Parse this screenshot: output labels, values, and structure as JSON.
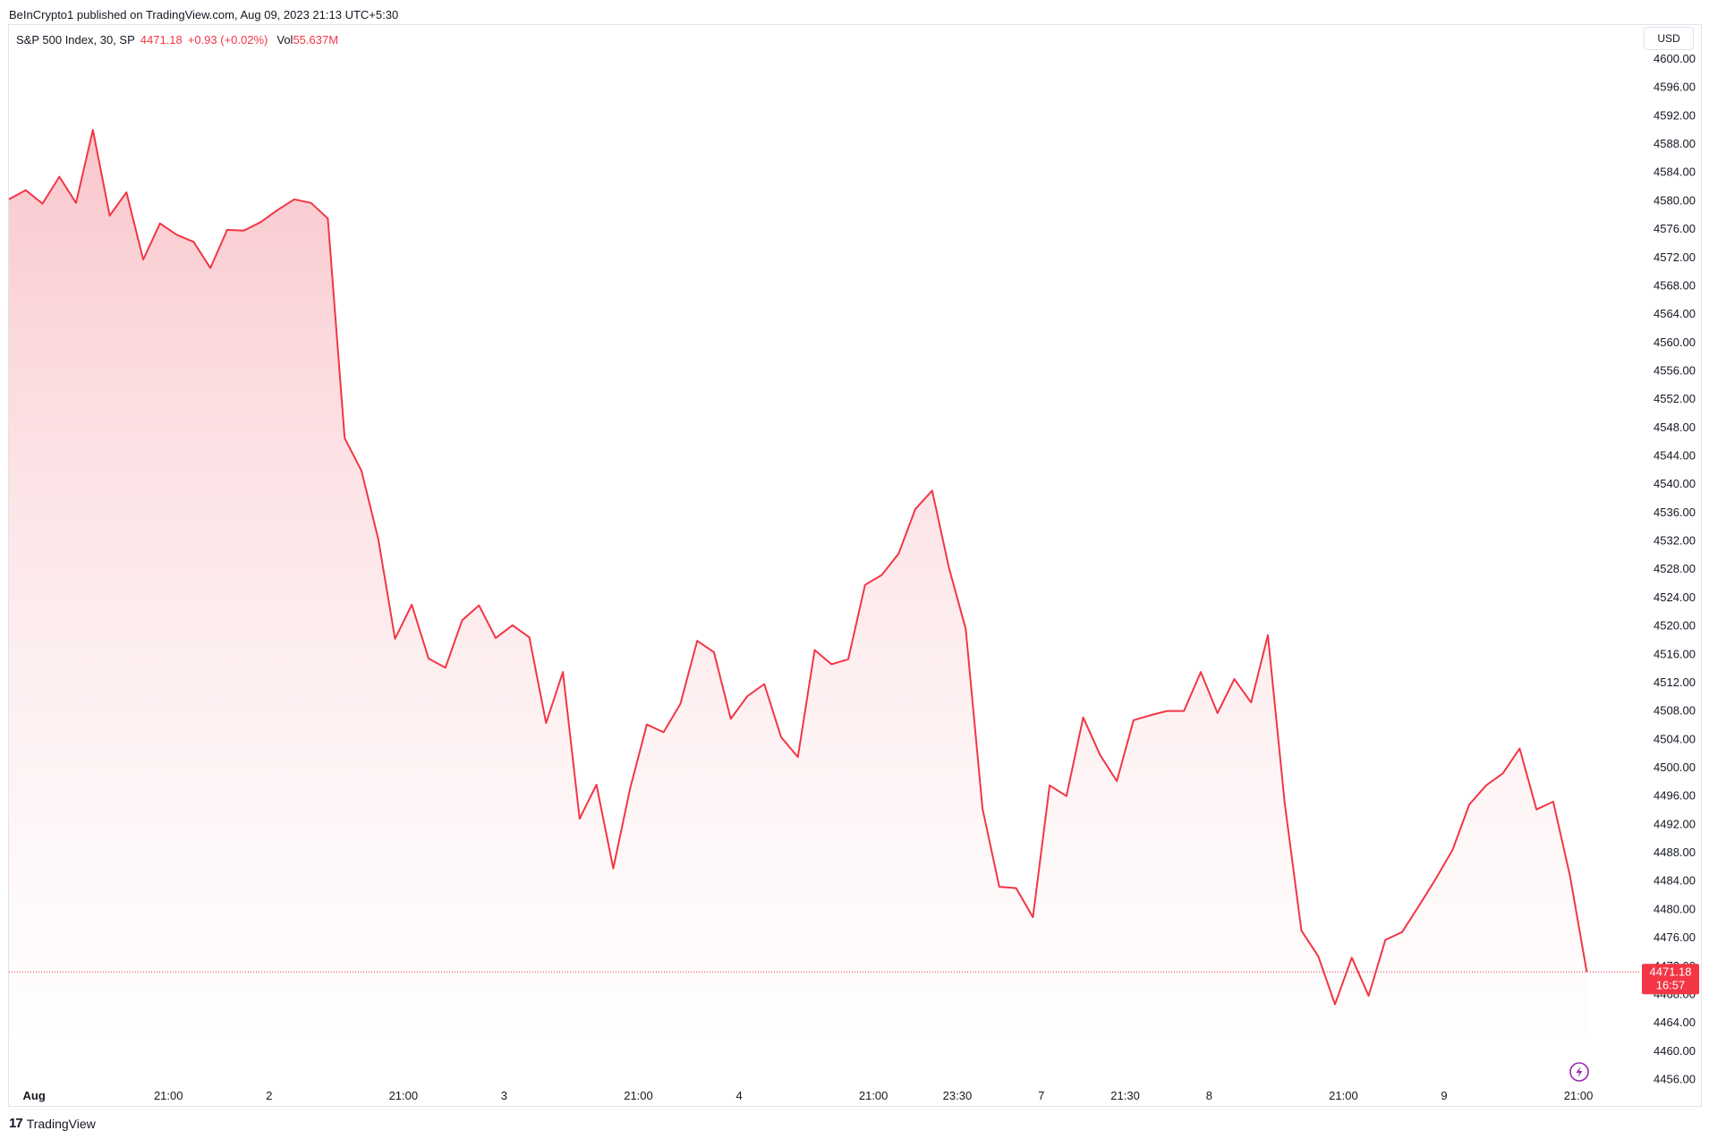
{
  "header": {
    "publish_text": "BeInCrypto1 published on TradingView.com, Aug 09, 2023 21:13 UTC+5:30"
  },
  "legend": {
    "symbol": "S&P 500 Index, 30, SP",
    "price": "4471.18",
    "change": "+0.93 (+0.02%)",
    "vol_label": "Vol",
    "vol_value": "55.637M"
  },
  "currency_button": "USD",
  "price_badge": {
    "price": "4471.18",
    "countdown": "16:57"
  },
  "footer": {
    "brand": "TradingView",
    "logo_icon": "tradingview-logo-icon"
  },
  "colors": {
    "line": "#f23645",
    "fill_top": "#f7b3ba",
    "badge": "#f23645"
  },
  "lightning_icon": "lightning-icon",
  "chart_data": {
    "type": "area",
    "title": "",
    "xlabel": "",
    "ylabel": "",
    "ylim": [
      4453,
      4605
    ],
    "grid": false,
    "last_price": 4471.18,
    "y_ticks": [
      "4600.00",
      "4596.00",
      "4592.00",
      "4588.00",
      "4584.00",
      "4580.00",
      "4576.00",
      "4572.00",
      "4568.00",
      "4564.00",
      "4560.00",
      "4556.00",
      "4552.00",
      "4548.00",
      "4544.00",
      "4540.00",
      "4536.00",
      "4532.00",
      "4528.00",
      "4524.00",
      "4520.00",
      "4516.00",
      "4512.00",
      "4508.00",
      "4504.00",
      "4500.00",
      "4496.00",
      "4492.00",
      "4488.00",
      "4484.00",
      "4480.00",
      "4476.00",
      "4472.00",
      "4468.00",
      "4464.00",
      "4460.00",
      "4456.00"
    ],
    "x_ticks": [
      {
        "label": "Aug",
        "bar": 1.5,
        "bold": true
      },
      {
        "label": "21:00",
        "bar": 9.5
      },
      {
        "label": "2",
        "bar": 15.5
      },
      {
        "label": "21:00",
        "bar": 23.5
      },
      {
        "label": "3",
        "bar": 29.5
      },
      {
        "label": "21:00",
        "bar": 37.5
      },
      {
        "label": "4",
        "bar": 43.5
      },
      {
        "label": "21:00",
        "bar": 51.5
      },
      {
        "label": "23:30",
        "bar": 56.5
      },
      {
        "label": "7",
        "bar": 61.5
      },
      {
        "label": "21:30",
        "bar": 66.5
      },
      {
        "label": "8",
        "bar": 71.5
      },
      {
        "label": "21:00",
        "bar": 79.5
      },
      {
        "label": "9",
        "bar": 85.5
      },
      {
        "label": "21:00",
        "bar": 93.5
      }
    ],
    "series": [
      {
        "values": [
          4580.2,
          4581.5,
          4579.6,
          4583.4,
          4579.7,
          4590.0,
          4577.9,
          4581.2,
          4571.7,
          4576.8,
          4575.2,
          4574.2,
          4570.5,
          4575.9,
          4575.8,
          4577.0,
          4578.7,
          4580.2,
          4579.7,
          4577.5,
          4546.5,
          4541.9,
          4532.3,
          4518.2,
          4523.0,
          4515.4,
          4514.1,
          4520.8,
          4522.9,
          4518.3,
          4520.1,
          4518.4,
          4506.3,
          4513.5,
          4492.8,
          4497.6,
          4485.8,
          4497.0,
          4506.1,
          4505.0,
          4509.0,
          4517.9,
          4516.3,
          4506.9,
          4510.1,
          4511.8,
          4504.3,
          4501.5,
          4516.6,
          4514.6,
          4515.3,
          4525.8,
          4527.2,
          4530.2,
          4536.5,
          4539.1,
          4528.2,
          4519.6,
          4494.2,
          4483.2,
          4483.0,
          4478.9,
          4497.5,
          4496.0,
          4507.1,
          4501.8,
          4498.1,
          4506.7,
          4507.4,
          4508.0,
          4508.0,
          4513.5,
          4507.7,
          4512.5,
          4509.2,
          4518.7,
          4495.0,
          4477.0,
          4473.4,
          4466.6,
          4473.2,
          4467.8,
          4475.7,
          4476.8,
          4480.5,
          4484.3,
          4488.4,
          4494.8,
          4497.5,
          4499.2,
          4502.7,
          4494.1,
          4495.2,
          4484.7,
          4471.18
        ]
      }
    ]
  }
}
